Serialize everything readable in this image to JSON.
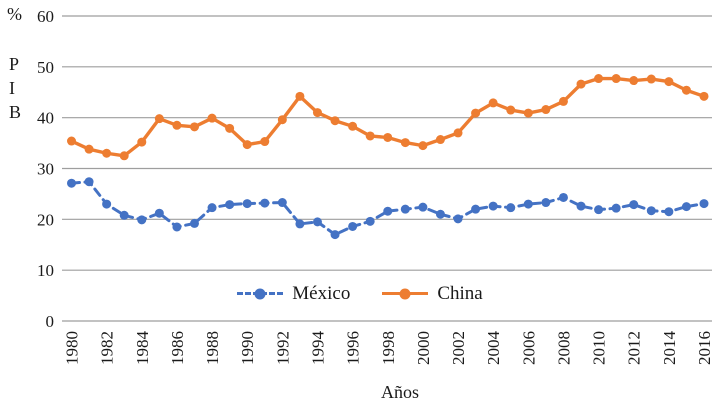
{
  "chart_data": {
    "type": "line",
    "title": "",
    "xlabel": "Años",
    "ylabel_top": "%",
    "ylabel_letters": [
      "P",
      "I",
      "B"
    ],
    "ylim": [
      0,
      60
    ],
    "y_tick_step": 10,
    "x_tick_step": 2,
    "grid": "horizontal",
    "legend_position": "bottom-center-inside",
    "colors": {
      "grid": "#9e9e9e",
      "text": "#1a1a1a"
    },
    "x": [
      1980,
      1981,
      1982,
      1983,
      1984,
      1985,
      1986,
      1987,
      1988,
      1989,
      1990,
      1991,
      1992,
      1993,
      1994,
      1995,
      1996,
      1997,
      1998,
      1999,
      2000,
      2001,
      2002,
      2003,
      2004,
      2005,
      2006,
      2007,
      2008,
      2009,
      2010,
      2011,
      2012,
      2013,
      2014,
      2015,
      2016
    ],
    "series": [
      {
        "name": "México",
        "color": "#4472C4",
        "style": "dashed",
        "marker": "circle",
        "values": [
          27.1,
          27.4,
          23.0,
          20.8,
          19.9,
          21.2,
          18.5,
          19.2,
          22.3,
          22.9,
          23.1,
          23.2,
          23.3,
          19.1,
          19.5,
          17.0,
          18.6,
          19.6,
          21.6,
          22.0,
          22.4,
          21.0,
          20.1,
          22.0,
          22.6,
          22.3,
          23.0,
          23.3,
          24.3,
          22.6,
          21.9,
          22.2,
          22.9,
          21.7,
          21.5,
          22.5,
          23.1
        ]
      },
      {
        "name": "China",
        "color": "#ED7D31",
        "style": "solid",
        "marker": "circle",
        "values": [
          35.4,
          33.8,
          33.0,
          32.5,
          35.2,
          39.8,
          38.5,
          38.2,
          39.9,
          37.9,
          34.7,
          35.3,
          39.6,
          44.2,
          41.0,
          39.4,
          38.3,
          36.4,
          36.1,
          35.1,
          34.5,
          35.7,
          37.0,
          40.9,
          42.9,
          41.5,
          40.9,
          41.6,
          43.2,
          46.6,
          47.7,
          47.7,
          47.3,
          47.6,
          47.1,
          45.4,
          44.2
        ]
      }
    ]
  }
}
